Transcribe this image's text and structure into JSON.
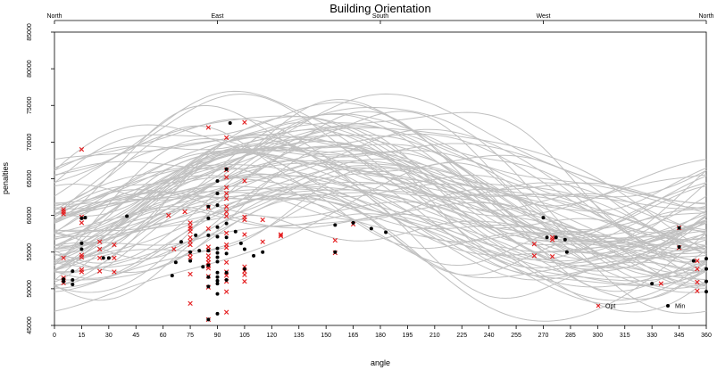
{
  "chart_data": {
    "type": "line",
    "title": "Building Orientation",
    "xlabel": "angle",
    "ylabel": "penalties",
    "xlim": [
      0,
      360
    ],
    "ylim": [
      45000,
      85000
    ],
    "x_ticks": [
      0,
      15,
      30,
      45,
      60,
      75,
      90,
      105,
      120,
      135,
      150,
      165,
      180,
      195,
      210,
      225,
      240,
      255,
      270,
      285,
      300,
      315,
      330,
      345,
      360
    ],
    "y_ticks": [
      45000,
      50000,
      55000,
      60000,
      65000,
      70000,
      75000,
      80000,
      85000
    ],
    "top_axis": [
      {
        "angle": 0,
        "label": "North"
      },
      {
        "angle": 90,
        "label": "East"
      },
      {
        "angle": 180,
        "label": "South"
      },
      {
        "angle": 270,
        "label": "West"
      },
      {
        "angle": 360,
        "label": "North"
      }
    ],
    "grid": false,
    "legend": {
      "placement": "bottom-right",
      "items": [
        {
          "label": "Opt",
          "marker": "x",
          "color": "#e41a1c"
        },
        {
          "label": "Min",
          "marker": "dot",
          "color": "#000000"
        }
      ]
    },
    "curve_color": "#c0c0c0",
    "curves_note_count": 80,
    "opt_points": [
      [
        5,
        60800
      ],
      [
        5,
        60500
      ],
      [
        5,
        60200
      ],
      [
        5,
        54200
      ],
      [
        5,
        51500
      ],
      [
        5,
        51200
      ],
      [
        5,
        50800
      ],
      [
        15,
        69000
      ],
      [
        15,
        59800
      ],
      [
        15,
        59000
      ],
      [
        15,
        54600
      ],
      [
        15,
        54300
      ],
      [
        15,
        52600
      ],
      [
        15,
        52300
      ],
      [
        25,
        56400
      ],
      [
        25,
        55400
      ],
      [
        25,
        54200
      ],
      [
        25,
        52400
      ],
      [
        33,
        56000
      ],
      [
        33,
        54200
      ],
      [
        33,
        52300
      ],
      [
        63,
        60000
      ],
      [
        66,
        55400
      ],
      [
        72,
        60500
      ],
      [
        75,
        59000
      ],
      [
        75,
        58500
      ],
      [
        75,
        58200
      ],
      [
        75,
        57800
      ],
      [
        75,
        57000
      ],
      [
        75,
        56500
      ],
      [
        75,
        56000
      ],
      [
        75,
        54800
      ],
      [
        75,
        54300
      ],
      [
        75,
        52000
      ],
      [
        75,
        48000
      ],
      [
        85,
        72000
      ],
      [
        85,
        61100
      ],
      [
        85,
        58200
      ],
      [
        85,
        55700
      ],
      [
        85,
        55300
      ],
      [
        85,
        54500
      ],
      [
        85,
        54000
      ],
      [
        85,
        53600
      ],
      [
        85,
        53100
      ],
      [
        85,
        52800
      ],
      [
        85,
        51700
      ],
      [
        85,
        50200
      ],
      [
        85,
        45800
      ],
      [
        95,
        70600
      ],
      [
        95,
        66200
      ],
      [
        95,
        65200
      ],
      [
        95,
        63800
      ],
      [
        95,
        63000
      ],
      [
        95,
        62300
      ],
      [
        95,
        61200
      ],
      [
        95,
        60500
      ],
      [
        95,
        59900
      ],
      [
        95,
        57600
      ],
      [
        95,
        56000
      ],
      [
        95,
        55600
      ],
      [
        95,
        53600
      ],
      [
        95,
        52300
      ],
      [
        95,
        51800
      ],
      [
        95,
        51000
      ],
      [
        95,
        49600
      ],
      [
        95,
        46800
      ],
      [
        105,
        72700
      ],
      [
        105,
        64700
      ],
      [
        105,
        59800
      ],
      [
        105,
        59400
      ],
      [
        105,
        57400
      ],
      [
        105,
        53000
      ],
      [
        105,
        52400
      ],
      [
        105,
        51900
      ],
      [
        105,
        51000
      ],
      [
        115,
        59400
      ],
      [
        115,
        56400
      ],
      [
        125,
        57400
      ],
      [
        125,
        57200
      ],
      [
        155,
        56600
      ],
      [
        155,
        54900
      ],
      [
        165,
        58800
      ],
      [
        265,
        56100
      ],
      [
        265,
        54500
      ],
      [
        275,
        57000
      ],
      [
        275,
        56700
      ],
      [
        275,
        54400
      ],
      [
        335,
        50700
      ],
      [
        345,
        58300
      ],
      [
        345,
        55600
      ],
      [
        355,
        53800
      ],
      [
        355,
        52700
      ],
      [
        355,
        50900
      ],
      [
        355,
        49700
      ]
    ],
    "min_points": [
      [
        5,
        51300
      ],
      [
        5,
        51000
      ],
      [
        10,
        52400
      ],
      [
        10,
        51200
      ],
      [
        10,
        50600
      ],
      [
        15,
        59600
      ],
      [
        15,
        56200
      ],
      [
        15,
        55400
      ],
      [
        17,
        59700
      ],
      [
        27,
        54200
      ],
      [
        30,
        54200
      ],
      [
        40,
        59900
      ],
      [
        65,
        51800
      ],
      [
        67,
        53600
      ],
      [
        70,
        56400
      ],
      [
        75,
        55000
      ],
      [
        75,
        53800
      ],
      [
        78,
        57300
      ],
      [
        80,
        55200
      ],
      [
        82,
        53000
      ],
      [
        85,
        61200
      ],
      [
        85,
        59600
      ],
      [
        85,
        57300
      ],
      [
        85,
        55200
      ],
      [
        85,
        53200
      ],
      [
        85,
        51600
      ],
      [
        85,
        50300
      ],
      [
        85,
        45800
      ],
      [
        90,
        64700
      ],
      [
        90,
        63000
      ],
      [
        90,
        61400
      ],
      [
        90,
        58400
      ],
      [
        90,
        57100
      ],
      [
        90,
        55500
      ],
      [
        90,
        54900
      ],
      [
        90,
        54300
      ],
      [
        90,
        53700
      ],
      [
        90,
        52200
      ],
      [
        90,
        51600
      ],
      [
        90,
        51100
      ],
      [
        90,
        50700
      ],
      [
        90,
        49300
      ],
      [
        90,
        46600
      ],
      [
        95,
        66300
      ],
      [
        95,
        58900
      ],
      [
        95,
        57000
      ],
      [
        95,
        54800
      ],
      [
        95,
        52200
      ],
      [
        95,
        51200
      ],
      [
        97,
        72600
      ],
      [
        100,
        57800
      ],
      [
        103,
        56200
      ],
      [
        105,
        55400
      ],
      [
        105,
        52700
      ],
      [
        110,
        54500
      ],
      [
        115,
        55000
      ],
      [
        155,
        58700
      ],
      [
        155,
        55000
      ],
      [
        165,
        59000
      ],
      [
        175,
        58200
      ],
      [
        183,
        57700
      ],
      [
        270,
        59700
      ],
      [
        272,
        57000
      ],
      [
        277,
        57000
      ],
      [
        282,
        56700
      ],
      [
        283,
        55000
      ],
      [
        330,
        50700
      ],
      [
        345,
        58300
      ],
      [
        345,
        55700
      ],
      [
        353,
        53800
      ],
      [
        360,
        54100
      ],
      [
        360,
        52700
      ],
      [
        360,
        51000
      ],
      [
        360,
        49600
      ]
    ]
  }
}
